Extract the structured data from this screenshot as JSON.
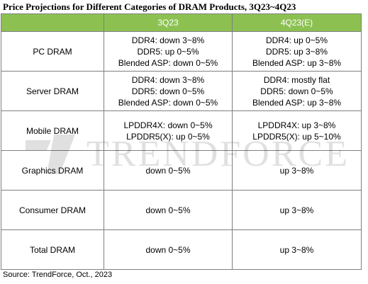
{
  "title": "Price Projections for Different Categories of DRAM Products, 3Q23~4Q23",
  "colors": {
    "header_background": "#8cc152",
    "header_text": "#ffffff",
    "border": "#7f7f7f"
  },
  "table": {
    "headers": [
      "",
      "3Q23",
      "4Q23(E)"
    ],
    "rows": [
      {
        "category": "PC DRAM",
        "q3": [
          "DDR4: down 3~8%",
          "DDR5: up 0~5%",
          "Blended ASP: down 0~5%"
        ],
        "q4": [
          "DDR4: up 0~5%",
          "DDR5:  up 3~8%",
          "Blended ASP: up 3~8%"
        ]
      },
      {
        "category": "Server DRAM",
        "q3": [
          "DDR4: down 3~8%",
          "DDR5: down 0~5%",
          "Blended ASP: down 0~5%"
        ],
        "q4": [
          "DDR4: mostly flat",
          "DDR5: down 0~5%",
          "Blended ASP: up 3~8%"
        ]
      },
      {
        "category": "Mobile DRAM",
        "q3": [
          "LPDDR4X: down 0~5%",
          "LPDDR5(X): up 0~5%"
        ],
        "q4": [
          "LPDDR4X: up 3~8%",
          "LPDDR5(X): up 5~10%"
        ]
      },
      {
        "category": "Graphics DRAM",
        "q3": [
          "down 0~5%"
        ],
        "q4": [
          "up  3~8%"
        ]
      },
      {
        "category": "Consumer DRAM",
        "q3": [
          "down 0~5%"
        ],
        "q4": [
          "up  3~8%"
        ]
      },
      {
        "category": "Total DRAM",
        "q3": [
          "down 0~5%"
        ],
        "q4": [
          "up  3~8%"
        ]
      }
    ]
  },
  "watermark": {
    "text": "TRENDFORCE",
    "logo_icon": "trendforce-logo-icon"
  },
  "source": "Source: TrendForce, Oct.,  2023"
}
